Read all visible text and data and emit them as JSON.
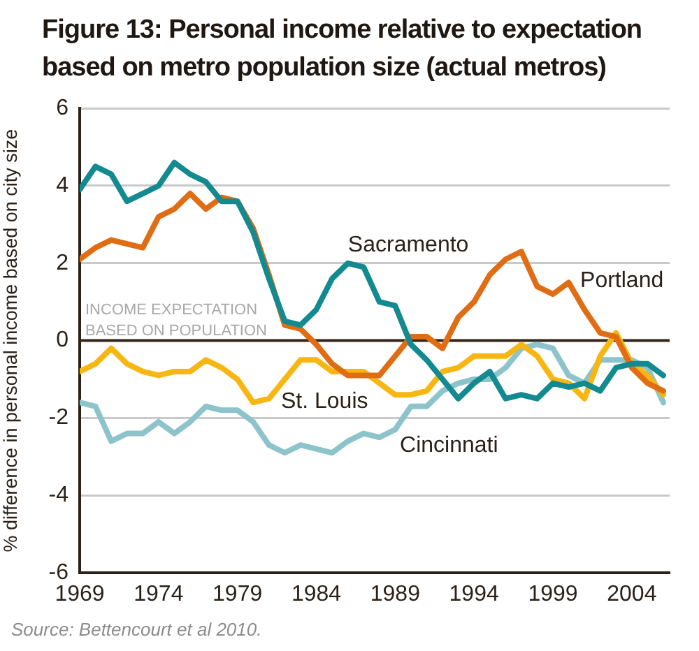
{
  "chart_data": {
    "type": "line",
    "title": "Figure 13: Personal income relative to expectation based on metro population size (actual metros)",
    "ylabel": "% difference in personal income based on city size",
    "x": [
      1969,
      1970,
      1971,
      1972,
      1973,
      1974,
      1975,
      1976,
      1977,
      1978,
      1979,
      1980,
      1981,
      1982,
      1983,
      1984,
      1985,
      1986,
      1987,
      1988,
      1989,
      1990,
      1991,
      1992,
      1993,
      1994,
      1995,
      1996,
      1997,
      1998,
      1999,
      2000,
      2001,
      2002,
      2003,
      2004,
      2005,
      2006
    ],
    "xlim": [
      1969,
      2006.4
    ],
    "xticks": [
      1969,
      1974,
      1979,
      1984,
      1989,
      1994,
      1999,
      2004
    ],
    "ylim": [
      -6,
      6
    ],
    "yticks": [
      -6,
      -4,
      -2,
      0,
      2,
      4,
      6
    ],
    "series": [
      {
        "name": "Sacramento",
        "color": "#138a90",
        "values": [
          3.9,
          4.5,
          4.3,
          3.6,
          3.8,
          4.0,
          4.6,
          4.3,
          4.1,
          3.6,
          3.6,
          2.8,
          1.6,
          0.5,
          0.4,
          0.8,
          1.6,
          2.0,
          1.9,
          1.0,
          0.9,
          -0.1,
          -0.5,
          -1.0,
          -1.5,
          -1.1,
          -0.8,
          -1.5,
          -1.4,
          -1.5,
          -1.1,
          -1.2,
          -1.1,
          -1.3,
          -0.7,
          -0.6,
          -0.6,
          -0.9
        ]
      },
      {
        "name": "Portland",
        "color": "#e06d13",
        "values": [
          2.1,
          2.4,
          2.6,
          2.5,
          2.4,
          3.2,
          3.4,
          3.8,
          3.4,
          3.7,
          3.6,
          2.9,
          1.7,
          0.4,
          0.3,
          -0.1,
          -0.6,
          -0.9,
          -0.9,
          -0.9,
          -0.4,
          0.1,
          0.1,
          -0.2,
          0.6,
          1.0,
          1.7,
          2.1,
          2.3,
          1.4,
          1.2,
          1.5,
          0.8,
          0.2,
          0.1,
          -0.7,
          -1.1,
          -1.3
        ]
      },
      {
        "name": "St. Louis",
        "color": "#f7b612",
        "values": [
          -0.8,
          -0.6,
          -0.2,
          -0.6,
          -0.8,
          -0.9,
          -0.8,
          -0.8,
          -0.5,
          -0.7,
          -1.0,
          -1.6,
          -1.5,
          -1.0,
          -0.5,
          -0.5,
          -0.8,
          -0.8,
          -0.8,
          -1.1,
          -1.4,
          -1.4,
          -1.3,
          -0.8,
          -0.7,
          -0.4,
          -0.4,
          -0.4,
          -0.1,
          -0.4,
          -1.0,
          -1.1,
          -1.5,
          -0.4,
          0.2,
          -0.6,
          -0.9,
          -1.4
        ]
      },
      {
        "name": "Cincinnati",
        "color": "#8dc3cb",
        "values": [
          -1.6,
          -1.7,
          -2.6,
          -2.4,
          -2.4,
          -2.1,
          -2.4,
          -2.1,
          -1.7,
          -1.8,
          -1.8,
          -2.1,
          -2.7,
          -2.9,
          -2.7,
          -2.8,
          -2.9,
          -2.6,
          -2.4,
          -2.5,
          -2.3,
          -1.7,
          -1.7,
          -1.3,
          -1.1,
          -1.0,
          -1.0,
          -0.7,
          -0.2,
          -0.1,
          -0.2,
          -0.9,
          -1.1,
          -0.5,
          -0.5,
          -0.5,
          -0.7,
          -1.6
        ]
      }
    ],
    "ref_lines": [
      {
        "axis": "y",
        "value": 0,
        "label": "INCOME EXPECTATION BASED ON POPULATION",
        "color": "#33261b"
      }
    ],
    "grid": "y",
    "marker": "none",
    "line_style": "solid",
    "annotations": [
      "Source: Bettencourt et al 2010."
    ]
  }
}
